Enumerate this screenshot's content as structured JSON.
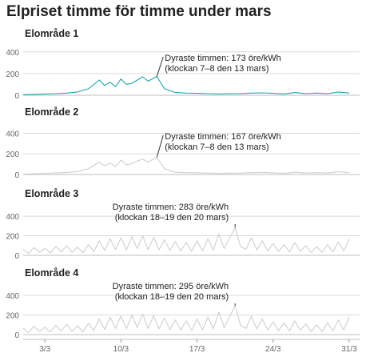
{
  "title": "Elpriset timme för timme under mars",
  "colors": {
    "highlight": "#1fa3b0",
    "muted": "#cfcfcf",
    "axis": "#666666",
    "grid": "#d9d9d9",
    "text": "#222222"
  },
  "x_ticks": [
    "3/3",
    "10/3",
    "17/3",
    "24/3",
    "31/3"
  ],
  "chart_data": [
    {
      "type": "line",
      "title": "Elområde 1",
      "xlabel": "",
      "ylabel": "",
      "xlim": [
        "2023-03-01 00:00",
        "2023-03-31 23:00"
      ],
      "ylim": [
        0,
        450
      ],
      "y_ticks": [
        0,
        200,
        400
      ],
      "grid": true,
      "series": [
        {
          "values": [
            [
              1,
              5
            ],
            [
              2,
              8
            ],
            [
              3,
              12
            ],
            [
              4,
              15
            ],
            [
              5,
              20
            ],
            [
              6,
              30
            ],
            [
              7,
              60
            ],
            [
              8,
              140
            ],
            [
              8.5,
              90
            ],
            [
              9,
              120
            ],
            [
              9.5,
              80
            ],
            [
              10,
              150
            ],
            [
              10.5,
              100
            ],
            [
              11,
              110
            ],
            [
              11.5,
              140
            ],
            [
              12,
              170
            ],
            [
              12.5,
              130
            ],
            [
              13.3,
              173
            ],
            [
              14,
              60
            ],
            [
              15,
              25
            ],
            [
              16,
              20
            ],
            [
              17,
              18
            ],
            [
              18,
              15
            ],
            [
              19,
              12
            ],
            [
              20,
              14
            ],
            [
              21,
              15
            ],
            [
              22,
              20
            ],
            [
              23,
              22
            ],
            [
              24,
              18
            ],
            [
              25,
              12
            ],
            [
              26,
              25
            ],
            [
              27,
              15
            ],
            [
              28,
              20
            ],
            [
              29,
              15
            ],
            [
              30,
              30
            ],
            [
              31,
              20
            ]
          ]
        }
      ],
      "annotation": {
        "x": 13.3,
        "y": 173,
        "text": [
          "Dyraste timmen: 173 öre/kWh",
          "(klockan 7–8 den 13 mars)"
        ]
      }
    },
    {
      "type": "line",
      "title": "Elområde 2",
      "xlabel": "",
      "ylabel": "",
      "xlim": [
        "2023-03-01 00:00",
        "2023-03-31 23:00"
      ],
      "ylim": [
        0,
        450
      ],
      "y_ticks": [
        0,
        200,
        400
      ],
      "grid": true,
      "series": [
        {
          "values": [
            [
              1,
              5
            ],
            [
              2,
              8
            ],
            [
              3,
              12
            ],
            [
              4,
              15
            ],
            [
              5,
              20
            ],
            [
              6,
              28
            ],
            [
              7,
              55
            ],
            [
              8,
              120
            ],
            [
              8.5,
              85
            ],
            [
              9,
              110
            ],
            [
              9.5,
              75
            ],
            [
              10,
              140
            ],
            [
              10.5,
              95
            ],
            [
              11,
              105
            ],
            [
              11.5,
              130
            ],
            [
              12,
              150
            ],
            [
              12.5,
              120
            ],
            [
              13.3,
              167
            ],
            [
              14,
              55
            ],
            [
              15,
              22
            ],
            [
              16,
              18
            ],
            [
              17,
              16
            ],
            [
              18,
              14
            ],
            [
              19,
              11
            ],
            [
              20,
              13
            ],
            [
              21,
              14
            ],
            [
              22,
              18
            ],
            [
              23,
              20
            ],
            [
              24,
              16
            ],
            [
              25,
              11
            ],
            [
              26,
              22
            ],
            [
              27,
              14
            ],
            [
              28,
              18
            ],
            [
              29,
              14
            ],
            [
              30,
              28
            ],
            [
              31,
              18
            ]
          ]
        }
      ],
      "annotation": {
        "x": 13.3,
        "y": 167,
        "text": [
          "Dyraste timmen: 167 öre/kWh",
          "(klockan 7–8 den 13 mars)"
        ]
      }
    },
    {
      "type": "line",
      "title": "Elområde 3",
      "xlabel": "",
      "ylabel": "",
      "xlim": [
        "2023-03-01 00:00",
        "2023-03-31 23:00"
      ],
      "ylim": [
        0,
        450
      ],
      "y_ticks": [
        0,
        200,
        400
      ],
      "grid": true,
      "series": [
        {
          "values": [
            [
              1,
              60
            ],
            [
              1.5,
              20
            ],
            [
              2,
              80
            ],
            [
              2.5,
              30
            ],
            [
              3,
              70
            ],
            [
              3.5,
              25
            ],
            [
              4,
              90
            ],
            [
              4.5,
              35
            ],
            [
              5,
              100
            ],
            [
              5.5,
              30
            ],
            [
              6,
              85
            ],
            [
              6.5,
              25
            ],
            [
              7,
              110
            ],
            [
              7.5,
              40
            ],
            [
              8,
              150
            ],
            [
              8.5,
              50
            ],
            [
              9,
              170
            ],
            [
              9.5,
              60
            ],
            [
              10,
              180
            ],
            [
              10.5,
              55
            ],
            [
              11,
              190
            ],
            [
              11.5,
              70
            ],
            [
              12,
              200
            ],
            [
              12.5,
              60
            ],
            [
              13,
              185
            ],
            [
              13.5,
              55
            ],
            [
              14,
              160
            ],
            [
              14.5,
              50
            ],
            [
              15,
              140
            ],
            [
              15.5,
              45
            ],
            [
              16,
              130
            ],
            [
              16.5,
              40
            ],
            [
              17,
              150
            ],
            [
              17.5,
              45
            ],
            [
              18,
              170
            ],
            [
              18.5,
              55
            ],
            [
              19,
              220
            ],
            [
              19.5,
              70
            ],
            [
              20.5,
              283
            ],
            [
              21,
              90
            ],
            [
              21.5,
              60
            ],
            [
              22,
              180
            ],
            [
              22.5,
              55
            ],
            [
              23,
              150
            ],
            [
              23.5,
              45
            ],
            [
              24,
              120
            ],
            [
              24.5,
              40
            ],
            [
              25,
              110
            ],
            [
              25.5,
              35
            ],
            [
              26,
              130
            ],
            [
              26.5,
              40
            ],
            [
              27,
              100
            ],
            [
              27.5,
              30
            ],
            [
              28,
              90
            ],
            [
              28.5,
              30
            ],
            [
              29,
              110
            ],
            [
              29.5,
              35
            ],
            [
              30,
              140
            ],
            [
              30.5,
              45
            ],
            [
              31,
              170
            ]
          ]
        }
      ],
      "annotation": {
        "x": 20.5,
        "y": 283,
        "text": [
          "Dyraste timmen: 283 öre/kWh",
          "(klockan 18–19 den 20 mars)"
        ]
      }
    },
    {
      "type": "line",
      "title": "Elområde 4",
      "xlabel": "",
      "ylabel": "",
      "xlim": [
        "2023-03-01 00:00",
        "2023-03-31 23:00"
      ],
      "ylim": [
        0,
        450
      ],
      "y_ticks": [
        0,
        200,
        400
      ],
      "grid": true,
      "series": [
        {
          "values": [
            [
              1,
              65
            ],
            [
              1.5,
              22
            ],
            [
              2,
              85
            ],
            [
              2.5,
              32
            ],
            [
              3,
              75
            ],
            [
              3.5,
              27
            ],
            [
              4,
              95
            ],
            [
              4.5,
              37
            ],
            [
              5,
              105
            ],
            [
              5.5,
              32
            ],
            [
              6,
              90
            ],
            [
              6.5,
              27
            ],
            [
              7,
              115
            ],
            [
              7.5,
              42
            ],
            [
              8,
              160
            ],
            [
              8.5,
              52
            ],
            [
              9,
              180
            ],
            [
              9.5,
              62
            ],
            [
              10,
              190
            ],
            [
              10.5,
              58
            ],
            [
              11,
              200
            ],
            [
              11.5,
              72
            ],
            [
              12,
              210
            ],
            [
              12.5,
              62
            ],
            [
              13,
              195
            ],
            [
              13.5,
              57
            ],
            [
              14,
              170
            ],
            [
              14.5,
              52
            ],
            [
              15,
              150
            ],
            [
              15.5,
              47
            ],
            [
              16,
              140
            ],
            [
              16.5,
              42
            ],
            [
              17,
              160
            ],
            [
              17.5,
              47
            ],
            [
              18,
              180
            ],
            [
              18.5,
              57
            ],
            [
              19,
              230
            ],
            [
              19.5,
              72
            ],
            [
              20.5,
              295
            ],
            [
              21,
              95
            ],
            [
              21.5,
              62
            ],
            [
              22,
              190
            ],
            [
              22.5,
              57
            ],
            [
              23,
              160
            ],
            [
              23.5,
              47
            ],
            [
              24,
              130
            ],
            [
              24.5,
              42
            ],
            [
              25,
              120
            ],
            [
              25.5,
              37
            ],
            [
              26,
              140
            ],
            [
              26.5,
              42
            ],
            [
              27,
              110
            ],
            [
              27.5,
              32
            ],
            [
              28,
              100
            ],
            [
              28.5,
              32
            ],
            [
              29,
              120
            ],
            [
              29.5,
              37
            ],
            [
              30,
              150
            ],
            [
              30.5,
              47
            ],
            [
              31,
              180
            ]
          ]
        }
      ],
      "annotation": {
        "x": 20.5,
        "y": 295,
        "text": [
          "Dyraste timmen: 295 öre/kWh",
          "(klockan 18–19 den 20 mars)"
        ]
      }
    }
  ]
}
